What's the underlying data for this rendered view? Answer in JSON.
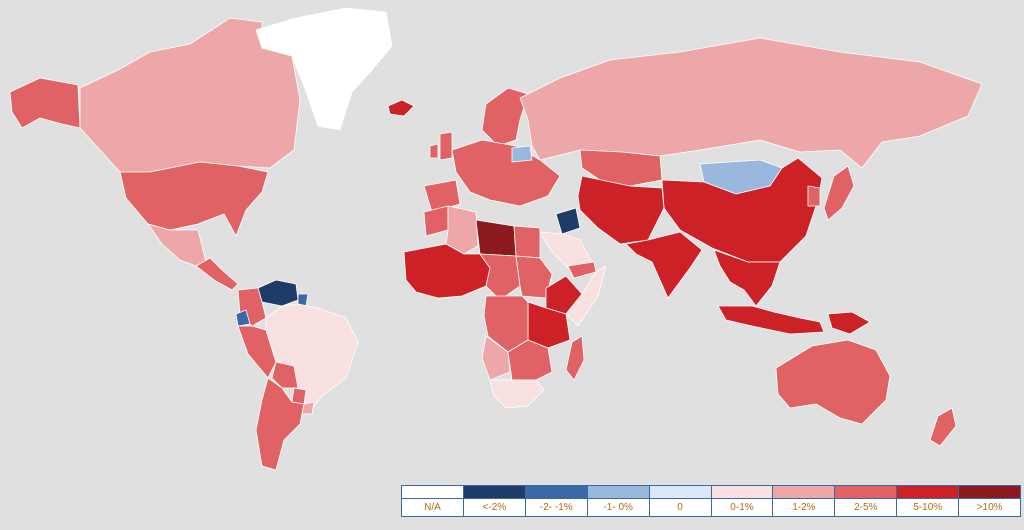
{
  "colors": {
    "ocean": "#e0e0e0",
    "na": "#ffffff",
    "lt_m2": "#1f3b68",
    "m2_m1": "#3b69a8",
    "m1_0": "#9ab7de",
    "zero": "#dce8f7",
    "p0_1": "#f9e0e1",
    "p1_2": "#eea7a8",
    "p2_5": "#e06264",
    "p5_10": "#cc2127",
    "gt10": "#8b1b1f"
  },
  "legend": [
    {
      "label": "N/A",
      "color_key": "na"
    },
    {
      "label": "<-2%",
      "color_key": "lt_m2"
    },
    {
      "label": "-2- -1%",
      "color_key": "m2_m1"
    },
    {
      "label": "-1- 0%",
      "color_key": "m1_0"
    },
    {
      "label": "0",
      "color_key": "zero"
    },
    {
      "label": "0-1%",
      "color_key": "p0_1"
    },
    {
      "label": "1-2%",
      "color_key": "p1_2"
    },
    {
      "label": "2-5%",
      "color_key": "p2_5"
    },
    {
      "label": "5-10%",
      "color_key": "p5_10"
    },
    {
      "label": ">10%",
      "color_key": "gt10"
    }
  ],
  "regions": [
    {
      "name": "Greenland",
      "cls": "na"
    },
    {
      "name": "Alaska",
      "cls": "p2_5"
    },
    {
      "name": "Canada",
      "cls": "p1_2"
    },
    {
      "name": "USA",
      "cls": "p2_5"
    },
    {
      "name": "Mexico",
      "cls": "p1_2"
    },
    {
      "name": "Central America",
      "cls": "p2_5"
    },
    {
      "name": "Venezuela",
      "cls": "lt_m2"
    },
    {
      "name": "Colombia",
      "cls": "p2_5"
    },
    {
      "name": "Ecuador",
      "cls": "m2_m1"
    },
    {
      "name": "Guyana",
      "cls": "m2_m1"
    },
    {
      "name": "Peru",
      "cls": "p2_5"
    },
    {
      "name": "Brazil",
      "cls": "p0_1"
    },
    {
      "name": "Bolivia",
      "cls": "p2_5"
    },
    {
      "name": "Paraguay",
      "cls": "p2_5"
    },
    {
      "name": "Chile/Argentina",
      "cls": "p2_5"
    },
    {
      "name": "Uruguay",
      "cls": "p1_2"
    },
    {
      "name": "Iceland",
      "cls": "p5_10"
    },
    {
      "name": "Scandinavia",
      "cls": "p2_5"
    },
    {
      "name": "UK",
      "cls": "p2_5"
    },
    {
      "name": "Ireland",
      "cls": "p2_5"
    },
    {
      "name": "Western Europe",
      "cls": "p2_5"
    },
    {
      "name": "Iberia",
      "cls": "p2_5"
    },
    {
      "name": "Belarus",
      "cls": "m1_0"
    },
    {
      "name": "Russia",
      "cls": "p1_2"
    },
    {
      "name": "Mongolia",
      "cls": "m1_0"
    },
    {
      "name": "Kazakhstan",
      "cls": "p2_5"
    },
    {
      "name": "China",
      "cls": "p5_10"
    },
    {
      "name": "India",
      "cls": "p5_10"
    },
    {
      "name": "Iran/Central Asia",
      "cls": "p5_10"
    },
    {
      "name": "Iraq",
      "cls": "lt_m2"
    },
    {
      "name": "Saudi Arabia",
      "cls": "p0_1"
    },
    {
      "name": "Yemen",
      "cls": "p2_5"
    },
    {
      "name": "Libya",
      "cls": "gt10"
    },
    {
      "name": "Algeria",
      "cls": "p1_2"
    },
    {
      "name": "Morocco",
      "cls": "p2_5"
    },
    {
      "name": "Egypt",
      "cls": "p2_5"
    },
    {
      "name": "West Africa",
      "cls": "p5_10"
    },
    {
      "name": "Chad/Niger",
      "cls": "p2_5"
    },
    {
      "name": "Sudan",
      "cls": "p2_5"
    },
    {
      "name": "Ethiopia",
      "cls": "p5_10"
    },
    {
      "name": "Somalia",
      "cls": "p0_1"
    },
    {
      "name": "East Africa",
      "cls": "p5_10"
    },
    {
      "name": "DR Congo",
      "cls": "p2_5"
    },
    {
      "name": "Angola",
      "cls": "p1_2"
    },
    {
      "name": "Southern Africa",
      "cls": "p2_5"
    },
    {
      "name": "South Africa",
      "cls": "p0_1"
    },
    {
      "name": "Madagascar",
      "cls": "p2_5"
    },
    {
      "name": "Southeast Asia",
      "cls": "p5_10"
    },
    {
      "name": "Indonesia",
      "cls": "p5_10"
    },
    {
      "name": "Papua",
      "cls": "p5_10"
    },
    {
      "name": "Japan",
      "cls": "p2_5"
    },
    {
      "name": "Korea",
      "cls": "p2_5"
    },
    {
      "name": "Australia",
      "cls": "p2_5"
    },
    {
      "name": "New Zealand",
      "cls": "p2_5"
    }
  ]
}
